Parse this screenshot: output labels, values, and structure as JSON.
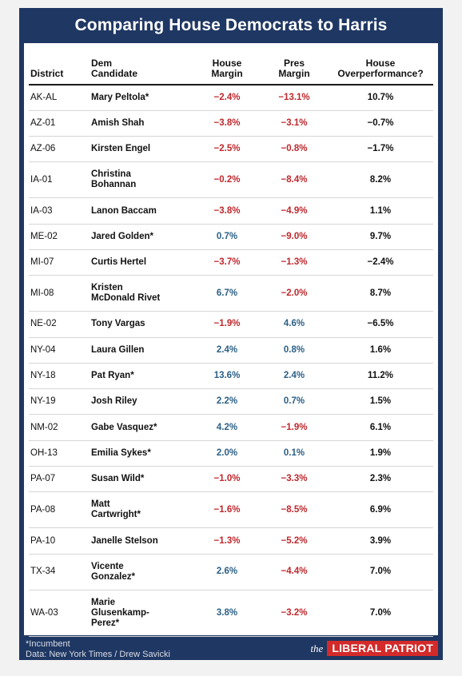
{
  "title": "Comparing House Democrats to Harris",
  "chart_data": {
    "type": "table",
    "columns": [
      "District",
      "Dem Candidate",
      "House Margin",
      "Pres Margin",
      "House Overperformance?"
    ],
    "rows": [
      {
        "district": "AK-AL",
        "candidate": "Mary Peltola*",
        "house": "-2.4%",
        "pres": "-13.1%",
        "over": "10.7%"
      },
      {
        "district": "AZ-01",
        "candidate": "Amish Shah",
        "house": "-3.8%",
        "pres": "-3.1%",
        "over": "-0.7%"
      },
      {
        "district": "AZ-06",
        "candidate": "Kirsten Engel",
        "house": "-2.5%",
        "pres": "-0.8%",
        "over": "-1.7%"
      },
      {
        "district": "IA-01",
        "candidate": "Christina Bohannan",
        "house": "-0.2%",
        "pres": "-8.4%",
        "over": "8.2%"
      },
      {
        "district": "IA-03",
        "candidate": "Lanon Baccam",
        "house": "-3.8%",
        "pres": "-4.9%",
        "over": "1.1%"
      },
      {
        "district": "ME-02",
        "candidate": "Jared Golden*",
        "house": "0.7%",
        "pres": "-9.0%",
        "over": "9.7%"
      },
      {
        "district": "MI-07",
        "candidate": "Curtis Hertel",
        "house": "-3.7%",
        "pres": "-1.3%",
        "over": "-2.4%"
      },
      {
        "district": "MI-08",
        "candidate": "Kristen McDonald Rivet",
        "house": "6.7%",
        "pres": "-2.0%",
        "over": "8.7%"
      },
      {
        "district": "NE-02",
        "candidate": "Tony Vargas",
        "house": "-1.9%",
        "pres": "4.6%",
        "over": "-6.5%"
      },
      {
        "district": "NY-04",
        "candidate": "Laura Gillen",
        "house": "2.4%",
        "pres": "0.8%",
        "over": "1.6%"
      },
      {
        "district": "NY-18",
        "candidate": "Pat Ryan*",
        "house": "13.6%",
        "pres": "2.4%",
        "over": "11.2%"
      },
      {
        "district": "NY-19",
        "candidate": "Josh Riley",
        "house": "2.2%",
        "pres": "0.7%",
        "over": "1.5%"
      },
      {
        "district": "NM-02",
        "candidate": "Gabe Vasquez*",
        "house": "4.2%",
        "pres": "-1.9%",
        "over": "6.1%"
      },
      {
        "district": "OH-13",
        "candidate": "Emilia Sykes*",
        "house": "2.0%",
        "pres": "0.1%",
        "over": "1.9%"
      },
      {
        "district": "PA-07",
        "candidate": "Susan Wild*",
        "house": "-1.0%",
        "pres": "-3.3%",
        "over": "2.3%"
      },
      {
        "district": "PA-08",
        "candidate": "Matt Cartwright*",
        "house": "-1.6%",
        "pres": "-8.5%",
        "over": "6.9%"
      },
      {
        "district": "PA-10",
        "candidate": "Janelle Stelson",
        "house": "-1.3%",
        "pres": "-5.2%",
        "over": "3.9%"
      },
      {
        "district": "TX-34",
        "candidate": "Vicente Gonzalez*",
        "house": "2.6%",
        "pres": "-4.4%",
        "over": "7.0%"
      },
      {
        "district": "WA-03",
        "candidate": "Marie Glusenkamp-Perez*",
        "house": "3.8%",
        "pres": "-3.2%",
        "over": "7.0%"
      }
    ]
  },
  "header": {
    "district": "District",
    "candidate_l1": "Dem",
    "candidate_l2": "Candidate",
    "house_l1": "House",
    "house_l2": "Margin",
    "pres_l1": "Pres",
    "pres_l2": "Margin",
    "over_l1": "House",
    "over_l2": "Overperformance?"
  },
  "footer": {
    "note": "*Incumbent",
    "source": "Data: New York Times / Drew Savicki",
    "brand_the": "the",
    "brand_name": "LIBERAL PATRIOT"
  },
  "colors": {
    "frame": "#1f3763",
    "negative": "#c0282d",
    "positive": "#2b5f86",
    "brand": "#d42a2a"
  }
}
